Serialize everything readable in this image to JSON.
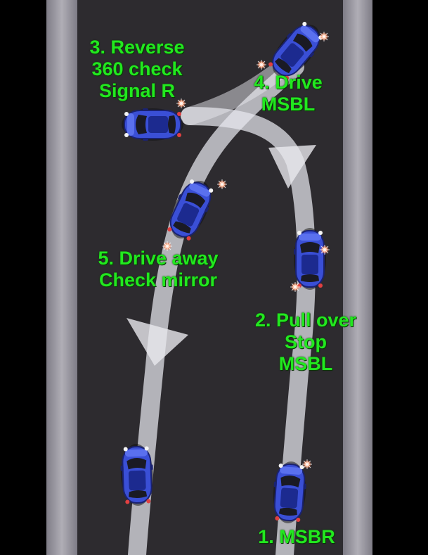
{
  "colors": {
    "page": "#000000",
    "road": "#2b2a2e",
    "kerb": "#9c9aa2",
    "path": "#e8e8ee",
    "car_body": "#3a4fd6",
    "car_roof": "#1c2a8f",
    "label": "#22e81f"
  },
  "labels": {
    "step1": [
      "1. MSBR"
    ],
    "step2": [
      "2. Pull over",
      "Stop",
      "MSBL"
    ],
    "step3": [
      "3. Reverse",
      "360 check",
      "Signal R"
    ],
    "step4": [
      "4. Drive",
      "MSBL"
    ],
    "step5": [
      "5. Drive away",
      "Check mirror"
    ]
  },
  "icons": {
    "car": "car-top-view-icon",
    "arrow": "arrowhead-icon"
  }
}
